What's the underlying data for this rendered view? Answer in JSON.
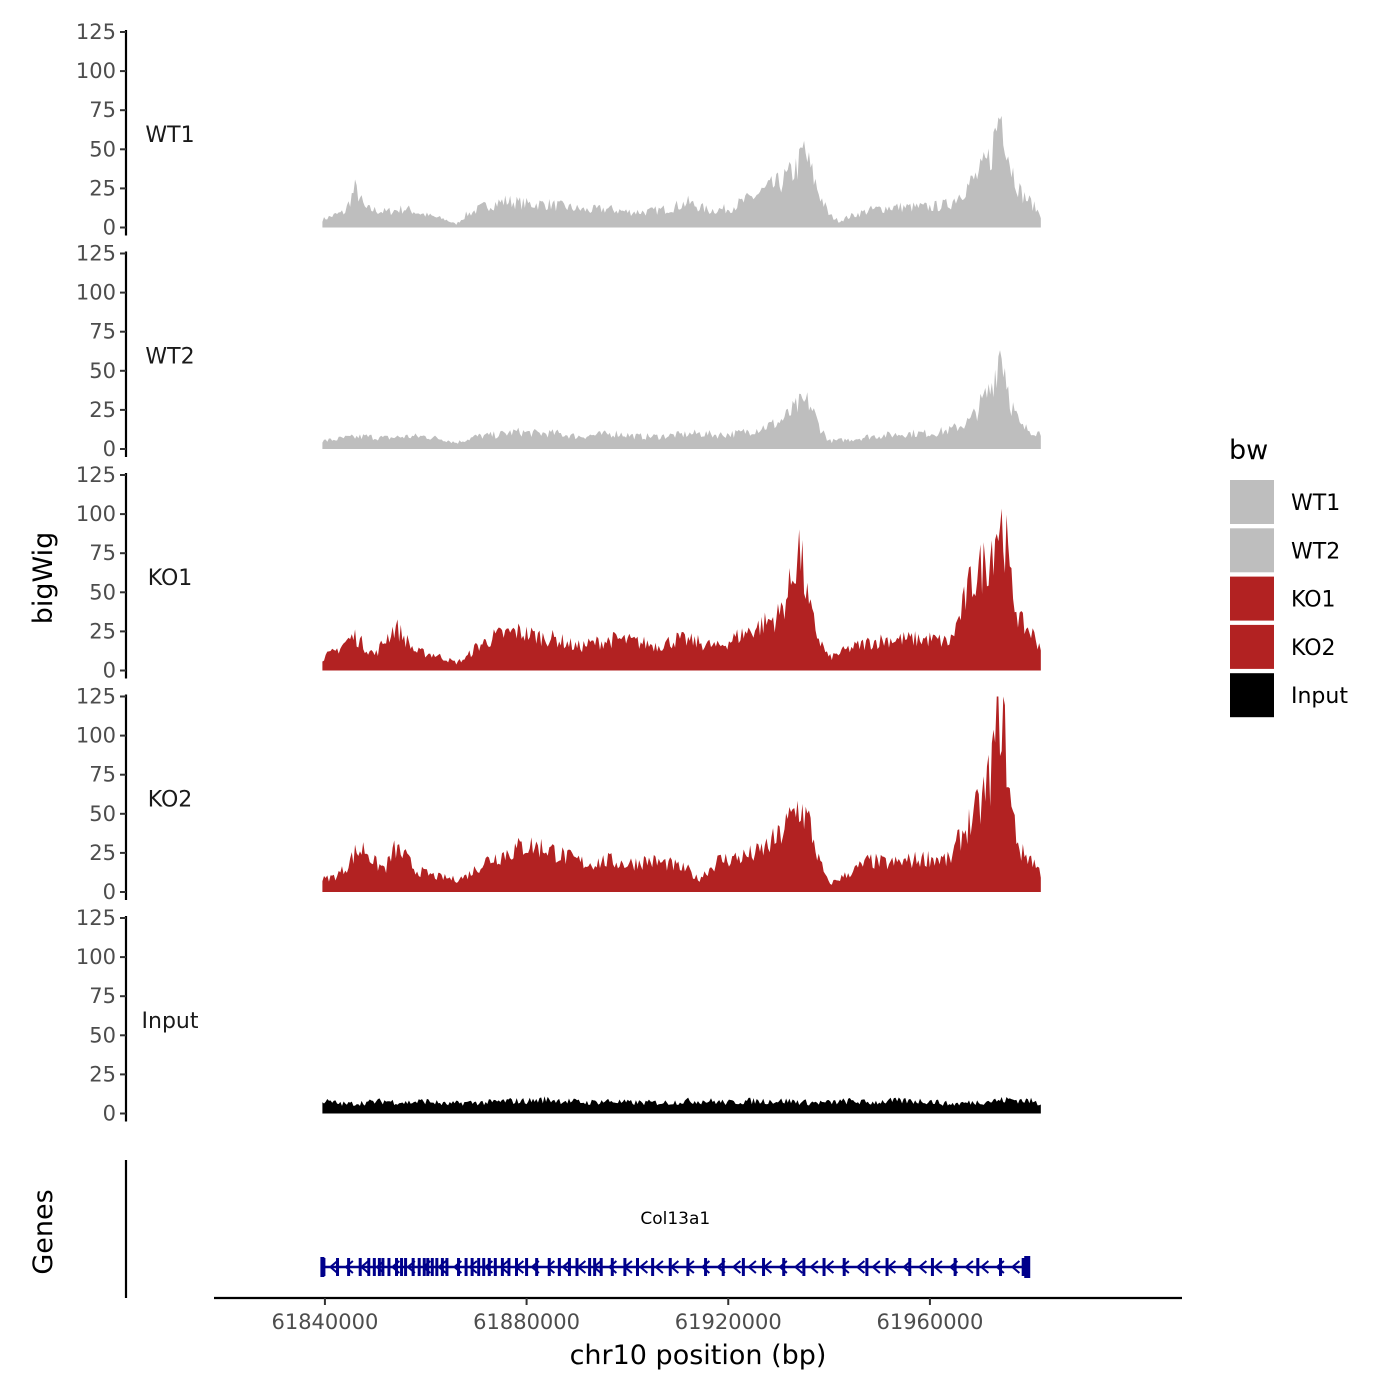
{
  "chart_data": {
    "type": "area",
    "title": "",
    "ylabel": "bigWig",
    "xlabel": "chr10 position (bp)",
    "genes_label": "Genes",
    "xlim": [
      61818000,
      62010000
    ],
    "data_range": [
      61839500,
      61982000
    ],
    "ylim": [
      0,
      125
    ],
    "yticks": [
      0,
      25,
      50,
      75,
      100,
      125
    ],
    "xticks": [
      61840000,
      61880000,
      61920000,
      61960000
    ],
    "tracks": [
      {
        "name": "WT1",
        "color": "#bebebe",
        "points": [
          [
            61839500,
            5
          ],
          [
            61842000,
            8
          ],
          [
            61844000,
            10
          ],
          [
            61846000,
            25
          ],
          [
            61848000,
            12
          ],
          [
            61852000,
            10
          ],
          [
            61856000,
            12
          ],
          [
            61860000,
            8
          ],
          [
            61864000,
            5
          ],
          [
            61866000,
            2
          ],
          [
            61868000,
            8
          ],
          [
            61872000,
            14
          ],
          [
            61876000,
            17
          ],
          [
            61880000,
            15
          ],
          [
            61884000,
            15
          ],
          [
            61888000,
            13
          ],
          [
            61892000,
            11
          ],
          [
            61896000,
            12
          ],
          [
            61900000,
            10
          ],
          [
            61904000,
            10
          ],
          [
            61908000,
            12
          ],
          [
            61912000,
            16
          ],
          [
            61916000,
            11
          ],
          [
            61920000,
            12
          ],
          [
            61924000,
            18
          ],
          [
            61928000,
            25
          ],
          [
            61930000,
            28
          ],
          [
            61932000,
            33
          ],
          [
            61934000,
            40
          ],
          [
            61935000,
            50
          ],
          [
            61936000,
            40
          ],
          [
            61938000,
            22
          ],
          [
            61940000,
            8
          ],
          [
            61942000,
            4
          ],
          [
            61944000,
            7
          ],
          [
            61948000,
            11
          ],
          [
            61952000,
            13
          ],
          [
            61956000,
            13
          ],
          [
            61960000,
            13
          ],
          [
            61964000,
            15
          ],
          [
            61966000,
            22
          ],
          [
            61968000,
            28
          ],
          [
            61970000,
            35
          ],
          [
            61972000,
            45
          ],
          [
            61973000,
            60
          ],
          [
            61974000,
            75
          ],
          [
            61975000,
            60
          ],
          [
            61976000,
            40
          ],
          [
            61978000,
            22
          ],
          [
            61980000,
            16
          ],
          [
            61982000,
            8
          ]
        ]
      },
      {
        "name": "WT2",
        "color": "#bebebe",
        "points": [
          [
            61839500,
            5
          ],
          [
            61844000,
            7
          ],
          [
            61848000,
            8
          ],
          [
            61852000,
            7
          ],
          [
            61856000,
            8
          ],
          [
            61860000,
            8
          ],
          [
            61864000,
            6
          ],
          [
            61866000,
            4
          ],
          [
            61870000,
            8
          ],
          [
            61874000,
            9
          ],
          [
            61878000,
            11
          ],
          [
            61882000,
            10
          ],
          [
            61886000,
            10
          ],
          [
            61890000,
            8
          ],
          [
            61894000,
            9
          ],
          [
            61898000,
            10
          ],
          [
            61902000,
            8
          ],
          [
            61906000,
            8
          ],
          [
            61910000,
            9
          ],
          [
            61914000,
            10
          ],
          [
            61918000,
            9
          ],
          [
            61922000,
            10
          ],
          [
            61926000,
            13
          ],
          [
            61930000,
            17
          ],
          [
            61932000,
            22
          ],
          [
            61934000,
            28
          ],
          [
            61936000,
            30
          ],
          [
            61938000,
            15
          ],
          [
            61940000,
            5
          ],
          [
            61944000,
            6
          ],
          [
            61948000,
            8
          ],
          [
            61952000,
            9
          ],
          [
            61956000,
            10
          ],
          [
            61960000,
            10
          ],
          [
            61964000,
            12
          ],
          [
            61968000,
            18
          ],
          [
            61970000,
            28
          ],
          [
            61972000,
            38
          ],
          [
            61973000,
            50
          ],
          [
            61974000,
            65
          ],
          [
            61975000,
            50
          ],
          [
            61976000,
            30
          ],
          [
            61978000,
            14
          ],
          [
            61980000,
            12
          ],
          [
            61982000,
            10
          ]
        ]
      },
      {
        "name": "KO1",
        "color": "#b22222",
        "points": [
          [
            61839500,
            8
          ],
          [
            61842000,
            12
          ],
          [
            61844000,
            18
          ],
          [
            61846000,
            22
          ],
          [
            61848000,
            15
          ],
          [
            61850000,
            10
          ],
          [
            61852000,
            20
          ],
          [
            61854000,
            28
          ],
          [
            61856000,
            20
          ],
          [
            61858000,
            12
          ],
          [
            61862000,
            10
          ],
          [
            61866000,
            5
          ],
          [
            61868000,
            8
          ],
          [
            61870000,
            15
          ],
          [
            61874000,
            22
          ],
          [
            61878000,
            25
          ],
          [
            61882000,
            22
          ],
          [
            61886000,
            20
          ],
          [
            61890000,
            15
          ],
          [
            61894000,
            18
          ],
          [
            61898000,
            20
          ],
          [
            61902000,
            18
          ],
          [
            61906000,
            16
          ],
          [
            61910000,
            20
          ],
          [
            61914000,
            18
          ],
          [
            61918000,
            15
          ],
          [
            61922000,
            22
          ],
          [
            61926000,
            28
          ],
          [
            61930000,
            35
          ],
          [
            61932000,
            50
          ],
          [
            61934000,
            80
          ],
          [
            61935000,
            60
          ],
          [
            61936000,
            40
          ],
          [
            61938000,
            20
          ],
          [
            61940000,
            8
          ],
          [
            61944000,
            14
          ],
          [
            61948000,
            18
          ],
          [
            61952000,
            20
          ],
          [
            61956000,
            20
          ],
          [
            61960000,
            20
          ],
          [
            61964000,
            18
          ],
          [
            61966000,
            35
          ],
          [
            61968000,
            55
          ],
          [
            61970000,
            65
          ],
          [
            61972000,
            75
          ],
          [
            61973000,
            90
          ],
          [
            61974000,
            95
          ],
          [
            61975000,
            85
          ],
          [
            61976000,
            55
          ],
          [
            61978000,
            30
          ],
          [
            61980000,
            25
          ],
          [
            61982000,
            15
          ]
        ]
      },
      {
        "name": "KO2",
        "color": "#b22222",
        "points": [
          [
            61839500,
            8
          ],
          [
            61842000,
            10
          ],
          [
            61844000,
            15
          ],
          [
            61846000,
            25
          ],
          [
            61848000,
            28
          ],
          [
            61850000,
            18
          ],
          [
            61852000,
            15
          ],
          [
            61854000,
            28
          ],
          [
            61856000,
            22
          ],
          [
            61858000,
            14
          ],
          [
            61862000,
            10
          ],
          [
            61866000,
            8
          ],
          [
            61868000,
            10
          ],
          [
            61872000,
            20
          ],
          [
            61876000,
            25
          ],
          [
            61880000,
            30
          ],
          [
            61884000,
            28
          ],
          [
            61888000,
            22
          ],
          [
            61892000,
            18
          ],
          [
            61896000,
            20
          ],
          [
            61900000,
            18
          ],
          [
            61904000,
            20
          ],
          [
            61908000,
            18
          ],
          [
            61912000,
            14
          ],
          [
            61914000,
            8
          ],
          [
            61918000,
            20
          ],
          [
            61922000,
            22
          ],
          [
            61926000,
            25
          ],
          [
            61930000,
            35
          ],
          [
            61932000,
            45
          ],
          [
            61934000,
            55
          ],
          [
            61936000,
            45
          ],
          [
            61938000,
            20
          ],
          [
            61940000,
            5
          ],
          [
            61944000,
            12
          ],
          [
            61948000,
            20
          ],
          [
            61952000,
            18
          ],
          [
            61956000,
            20
          ],
          [
            61960000,
            22
          ],
          [
            61964000,
            20
          ],
          [
            61966000,
            35
          ],
          [
            61968000,
            45
          ],
          [
            61970000,
            55
          ],
          [
            61972000,
            75
          ],
          [
            61973000,
            100
          ],
          [
            61974000,
            118
          ],
          [
            61975000,
            95
          ],
          [
            61976000,
            55
          ],
          [
            61978000,
            25
          ],
          [
            61980000,
            22
          ],
          [
            61982000,
            12
          ]
        ]
      },
      {
        "name": "Input",
        "color": "#000000",
        "points": [
          [
            61839500,
            8
          ],
          [
            61844000,
            6
          ],
          [
            61848000,
            7
          ],
          [
            61852000,
            8
          ],
          [
            61856000,
            7
          ],
          [
            61860000,
            8
          ],
          [
            61864000,
            6
          ],
          [
            61868000,
            7
          ],
          [
            61872000,
            7
          ],
          [
            61876000,
            8
          ],
          [
            61880000,
            8
          ],
          [
            61884000,
            9
          ],
          [
            61888000,
            8
          ],
          [
            61892000,
            7
          ],
          [
            61896000,
            8
          ],
          [
            61900000,
            7
          ],
          [
            61904000,
            7
          ],
          [
            61908000,
            7
          ],
          [
            61912000,
            8
          ],
          [
            61916000,
            8
          ],
          [
            61920000,
            7
          ],
          [
            61924000,
            8
          ],
          [
            61928000,
            8
          ],
          [
            61932000,
            8
          ],
          [
            61936000,
            7
          ],
          [
            61940000,
            7
          ],
          [
            61944000,
            8
          ],
          [
            61948000,
            7
          ],
          [
            61952000,
            8
          ],
          [
            61956000,
            8
          ],
          [
            61960000,
            8
          ],
          [
            61964000,
            6
          ],
          [
            61968000,
            7
          ],
          [
            61972000,
            8
          ],
          [
            61976000,
            9
          ],
          [
            61980000,
            8
          ],
          [
            61982000,
            6
          ]
        ]
      }
    ],
    "legend": {
      "title": "bw",
      "position": "right",
      "entries": [
        {
          "label": "WT1",
          "color": "#bebebe"
        },
        {
          "label": "WT2",
          "color": "#bebebe"
        },
        {
          "label": "KO1",
          "color": "#b22222"
        },
        {
          "label": "KO2",
          "color": "#b22222"
        },
        {
          "label": "Input",
          "color": "#000000"
        }
      ]
    },
    "gene": {
      "name": "Col13a1",
      "start": 61839500,
      "end": 61979500,
      "strand": "-",
      "color": "#00008b",
      "exons": [
        61839800,
        61842500,
        61844700,
        61847000,
        61848700,
        61849800,
        61850800,
        61851500,
        61852700,
        61854200,
        61855200,
        61856000,
        61857500,
        61858700,
        61859700,
        61860400,
        61861300,
        61862200,
        61863300,
        61864200,
        61866500,
        61868000,
        61869200,
        61870500,
        61871500,
        61872600,
        61873800,
        61875200,
        61876500,
        61878000,
        61880000,
        61882000,
        61884500,
        61886500,
        61888500,
        61890000,
        61892500,
        61893500,
        61894800,
        61897000,
        61899500,
        61902000,
        61905000,
        61908500,
        61912000,
        61915500,
        61919000,
        61923000,
        61927000,
        61931000,
        61935000,
        61939000,
        61943000,
        61947500,
        61951500,
        61956000,
        61960500,
        61965000,
        61969500,
        61974000,
        61978500,
        61979200
      ]
    }
  }
}
